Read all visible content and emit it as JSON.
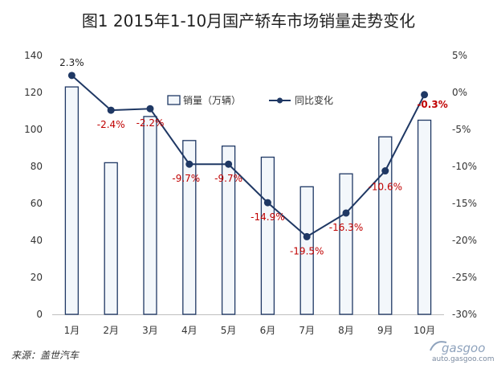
{
  "title": "图1  2015年1-10月国产轿车市场销量走势变化",
  "source": "来源：盖世汽车",
  "watermark": {
    "brand": "gasgoo",
    "url": "auto.gasgoo.com"
  },
  "colors": {
    "bar_fill": "#f3f7fb",
    "bar_stroke": "#1f3864",
    "line": "#1f3864",
    "negative_label": "#c00000",
    "positive_label": "#222222",
    "axis_text": "#333333"
  },
  "chart_data": {
    "type": "bar+line",
    "categories": [
      "1月",
      "2月",
      "3月",
      "4月",
      "5月",
      "6月",
      "7月",
      "8月",
      "9月",
      "10月"
    ],
    "series": [
      {
        "name": "销量（万辆）",
        "type": "bar",
        "axis": "left",
        "values": [
          123,
          82,
          107,
          94,
          91,
          85,
          69,
          76,
          96,
          105
        ]
      },
      {
        "name": "同比变化",
        "type": "line",
        "axis": "right",
        "values": [
          2.3,
          -2.4,
          -2.2,
          -9.7,
          -9.7,
          -14.9,
          -19.5,
          -16.3,
          -10.6,
          -0.3
        ],
        "labels": [
          "2.3%",
          "-2.4%",
          "-2.2%",
          "-9.7%",
          "-9.7%",
          "-14.9%",
          "-19.5%",
          "-16.3%",
          "-10.6%",
          "-0.3%"
        ]
      }
    ],
    "y_left": {
      "min": 0,
      "max": 140,
      "ticks": [
        0,
        20,
        40,
        60,
        80,
        100,
        120,
        140
      ]
    },
    "y_right": {
      "min": -30,
      "max": 5,
      "ticks": [
        -30,
        -25,
        -20,
        -15,
        -10,
        -5,
        0,
        5
      ],
      "tick_labels": [
        "-30%",
        "-25%",
        "-20%",
        "-15%",
        "-10%",
        "-5%",
        "0%",
        "5%"
      ]
    },
    "legend_position": "top-center",
    "grid": false
  }
}
